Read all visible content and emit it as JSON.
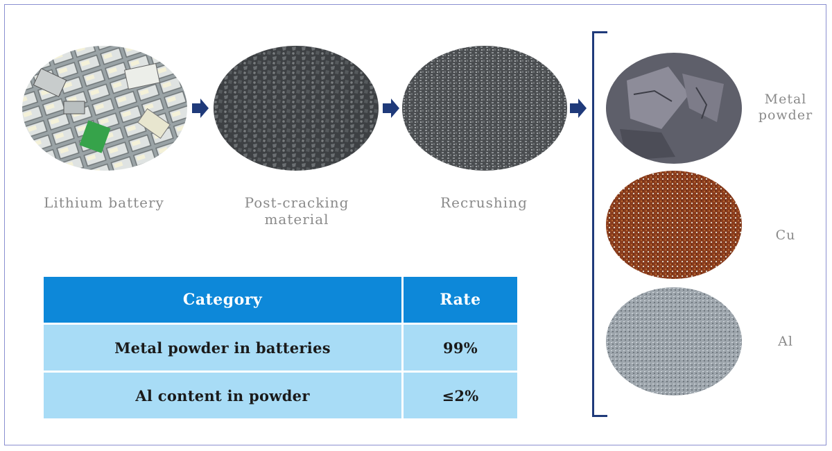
{
  "stages": [
    {
      "label": "Lithium battery",
      "image": "lithium-battery-pile-photo"
    },
    {
      "label": "Post-cracking\nmaterial",
      "image": "cracked-material-photo"
    },
    {
      "label": "Recrushing",
      "image": "recrushed-granules-photo"
    }
  ],
  "outputs": [
    {
      "label": "Metal\npowder",
      "image": "metal-powder-photo"
    },
    {
      "label": "Cu",
      "image": "copper-granules-photo"
    },
    {
      "label": "Al",
      "image": "aluminum-granules-photo"
    }
  ],
  "arrows": [
    "arrow-right-icon",
    "arrow-right-icon",
    "arrow-right-icon"
  ],
  "table": {
    "headers": [
      "Category",
      "Rate"
    ],
    "rows": [
      [
        "Metal powder in batteries",
        "99%"
      ],
      [
        "Al content in powder",
        "≤2%"
      ]
    ]
  },
  "colors": {
    "header_bg": "#0d88d9",
    "row_bg": "#a8dcf6",
    "arrow": "#1f3a7a",
    "bracket": "#1f3a7a",
    "frame": "#8a8fd0"
  }
}
